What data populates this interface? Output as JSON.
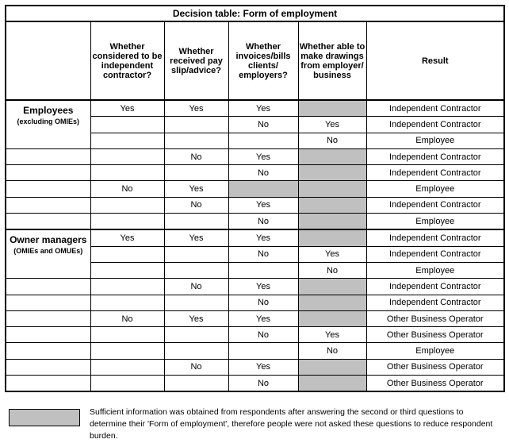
{
  "title": "Decision table: Form of employment",
  "headers": [
    "Whether considered to be independent contractor?",
    "Whether received pay slip/advice?",
    "Whether invoices/bills clients/ employers?",
    "Whether able to make drawings from employer/ business",
    "Result"
  ],
  "groups": [
    {
      "label": "Employees",
      "sublabel": "(excluding OMIEs)",
      "rows": [
        [
          "Yes",
          "Yes",
          "Yes",
          "#",
          "Independent Contractor"
        ],
        [
          "",
          "",
          "No",
          "Yes",
          "Independent Contractor"
        ],
        [
          "",
          "",
          "",
          "No",
          "Employee"
        ],
        [
          "",
          "No",
          "Yes",
          "#",
          "Independent Contractor"
        ],
        [
          "",
          "",
          "No",
          "#",
          "Independent Contractor"
        ],
        [
          "No",
          "Yes",
          "#",
          "#",
          "Employee"
        ],
        [
          "",
          "No",
          "Yes",
          "#",
          "Independent Contractor"
        ],
        [
          "",
          "",
          "No",
          "#",
          "Employee"
        ]
      ]
    },
    {
      "label": "Owner managers",
      "sublabel": "(OMIEs and OMUEs)",
      "rows": [
        [
          "Yes",
          "Yes",
          "Yes",
          "#",
          "Independent Contractor"
        ],
        [
          "",
          "",
          "No",
          "Yes",
          "Independent Contractor"
        ],
        [
          "",
          "",
          "",
          "No",
          "Employee"
        ],
        [
          "",
          "No",
          "Yes",
          "#",
          "Independent Contractor"
        ],
        [
          "",
          "",
          "No",
          "#",
          "Independent Contractor"
        ],
        [
          "No",
          "Yes",
          "Yes",
          "#",
          "Other Business Operator"
        ],
        [
          "",
          "",
          "No",
          "Yes",
          "Other Business Operator"
        ],
        [
          "",
          "",
          "",
          "No",
          "Employee"
        ],
        [
          "",
          "No",
          "Yes",
          "#",
          "Other Business Operator"
        ],
        [
          "",
          "",
          "No",
          "#",
          "Other Business Operator"
        ]
      ]
    }
  ],
  "legend": "Sufficient information was obtained from respondents after answering the second or third questions to determine their 'Form of employment', therefore people were not asked these questions to reduce respondent burden.",
  "colors": {
    "not_asked": "#c0c0c0"
  }
}
